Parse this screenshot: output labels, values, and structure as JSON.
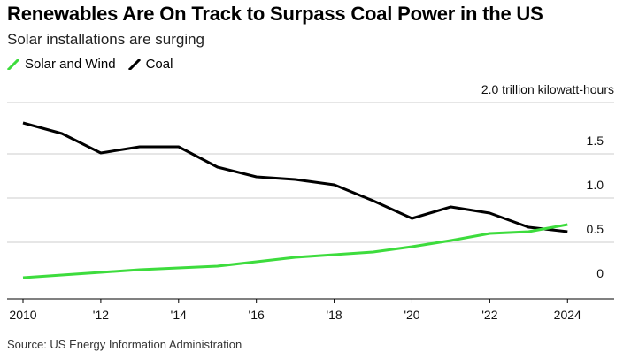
{
  "header": {
    "title": "Renewables Are On Track to Surpass Coal Power in the US",
    "subtitle": "Solar installations are surging"
  },
  "legend": {
    "items": [
      {
        "label": "Solar and Wind",
        "color": "#3ddc3d"
      },
      {
        "label": "Coal",
        "color": "#000000"
      }
    ]
  },
  "source": "Source: US Energy Information Administration",
  "chart_data": {
    "type": "line",
    "title": "Renewables Are On Track to Surpass Coal Power in the US",
    "subtitle": "Solar installations are surging",
    "y_unit_label": "2.0 trillion kilowatt-hours",
    "x": [
      2010,
      2011,
      2012,
      2013,
      2014,
      2015,
      2016,
      2017,
      2018,
      2019,
      2020,
      2021,
      2022,
      2023,
      2024
    ],
    "series": [
      {
        "name": "Solar and Wind",
        "color": "#3ddc3d",
        "values": [
          0.1,
          0.13,
          0.16,
          0.19,
          0.21,
          0.23,
          0.28,
          0.33,
          0.36,
          0.39,
          0.45,
          0.52,
          0.6,
          0.62,
          0.7
        ]
      },
      {
        "name": "Coal",
        "color": "#000000",
        "values": [
          1.85,
          1.73,
          1.51,
          1.58,
          1.58,
          1.35,
          1.24,
          1.21,
          1.15,
          0.97,
          0.77,
          0.9,
          0.83,
          0.67,
          0.62
        ]
      }
    ],
    "x_ticks": [
      {
        "value": 2010,
        "label": "2010"
      },
      {
        "value": 2012,
        "label": "'12"
      },
      {
        "value": 2014,
        "label": "'14"
      },
      {
        "value": 2016,
        "label": "'16"
      },
      {
        "value": 2018,
        "label": "'18"
      },
      {
        "value": 2020,
        "label": "'20"
      },
      {
        "value": 2022,
        "label": "'22"
      },
      {
        "value": 2024,
        "label": "2024"
      }
    ],
    "y_ticks": [
      {
        "value": 0,
        "label": "0"
      },
      {
        "value": 0.5,
        "label": "0.5"
      },
      {
        "value": 1.0,
        "label": "1.0"
      },
      {
        "value": 1.5,
        "label": "1.5"
      }
    ],
    "xlim": [
      2010,
      2025.2
    ],
    "ylim": [
      0,
      2.0
    ],
    "grid": true,
    "legend_position": "top-left",
    "y_axis_side": "right"
  }
}
